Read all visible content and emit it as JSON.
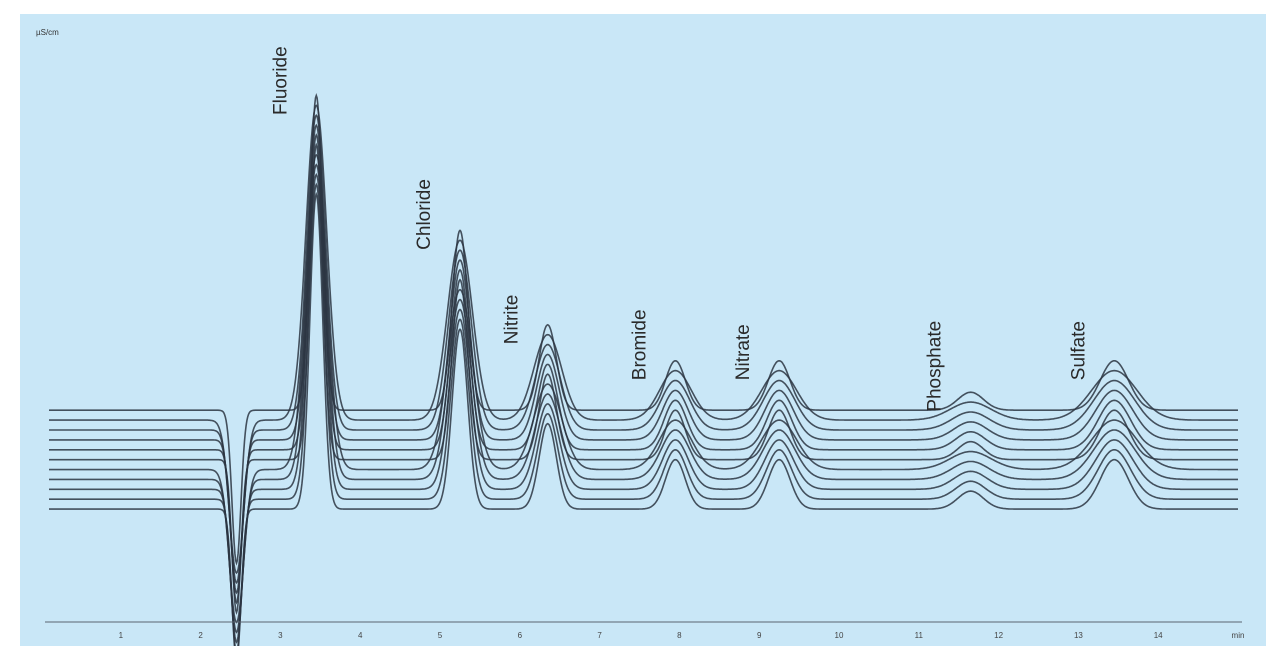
{
  "chart_data": {
    "type": "line",
    "title": "",
    "xlabel": "",
    "ylabel": "",
    "y_unit_label": "µS/cm",
    "xlim": [
      0,
      15
    ],
    "ylim": [
      -0.15,
      1.0
    ],
    "grid": false,
    "x_tick_labels": [
      "1",
      "2",
      "3",
      "4",
      "5",
      "6",
      "7",
      "8",
      "9",
      "10",
      "11",
      "12",
      "13",
      "14",
      "min"
    ],
    "system_peak": {
      "retention": 2.4,
      "height": -0.12
    },
    "peaks": [
      {
        "name": "Fluoride",
        "retention": 3.4,
        "height": 0.92
      },
      {
        "name": "Chloride",
        "retention": 5.2,
        "height": 0.62
      },
      {
        "name": "Nitrite",
        "retention": 6.3,
        "height": 0.41
      },
      {
        "name": "Bromide",
        "retention": 7.9,
        "height": 0.33
      },
      {
        "name": "Nitrate",
        "retention": 9.2,
        "height": 0.33
      },
      {
        "name": "Phosphate",
        "retention": 11.6,
        "height": 0.26
      },
      {
        "name": "Sulfate",
        "retention": 13.4,
        "height": 0.33
      }
    ],
    "baseline": 0.22,
    "colors": {
      "background": "#c9e7f7",
      "trace": "#2b3542",
      "axis": "#5a6470"
    }
  }
}
